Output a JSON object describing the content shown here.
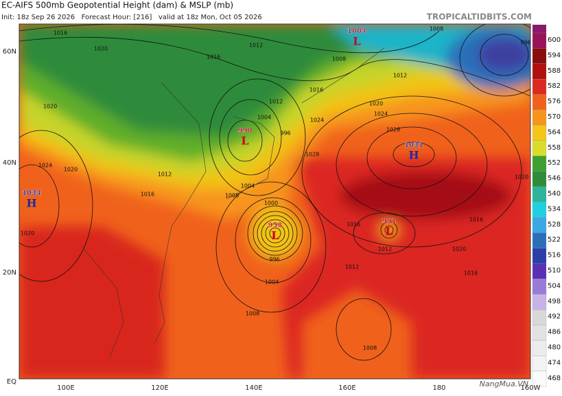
{
  "header": {
    "title": "EC-AIFS 500mb Geopotential Height (dam) & MSLP (mb)",
    "subtitle": "Init: 18z Sep 26 2026   Forecast Hour: [216]   valid at 18z Mon, Oct 05 2026",
    "site": "TROPICALTIDBITS.COM"
  },
  "latitude_labels": [
    "60N",
    "40N",
    "20N",
    "EQ"
  ],
  "longitude_labels": [
    "100E",
    "120E",
    "140E",
    "160E",
    "180",
    "160W"
  ],
  "colorbar_labels": [
    "600",
    "594",
    "588",
    "582",
    "576",
    "570",
    "564",
    "558",
    "552",
    "546",
    "540",
    "534",
    "528",
    "522",
    "516",
    "510",
    "504",
    "498",
    "492",
    "486",
    "480",
    "474",
    "468"
  ],
  "pressure_centers": [
    {
      "value": "1004",
      "letter": "L"
    },
    {
      "value": "990",
      "letter": "L"
    },
    {
      "value": "1031",
      "letter": "H"
    },
    {
      "value": "1034",
      "letter": "H"
    },
    {
      "value": "958",
      "letter": "L"
    },
    {
      "value": "991",
      "letter": "L"
    }
  ],
  "contour_labels": [
    "1016",
    "1020",
    "1016",
    "1012",
    "1008",
    "1008",
    "996",
    "1012",
    "1016",
    "1020",
    "1024",
    "1028",
    "1012",
    "1004",
    "996",
    "1020",
    "1024",
    "1020",
    "1016",
    "1012",
    "1008",
    "1004",
    "1000",
    "1016",
    "1012",
    "1020",
    "1016",
    "1012",
    "1004",
    "1008",
    "1008",
    "1020",
    "1016",
    "996",
    "1020",
    "1028",
    "1024"
  ],
  "watermark": "NangMua.VN"
}
